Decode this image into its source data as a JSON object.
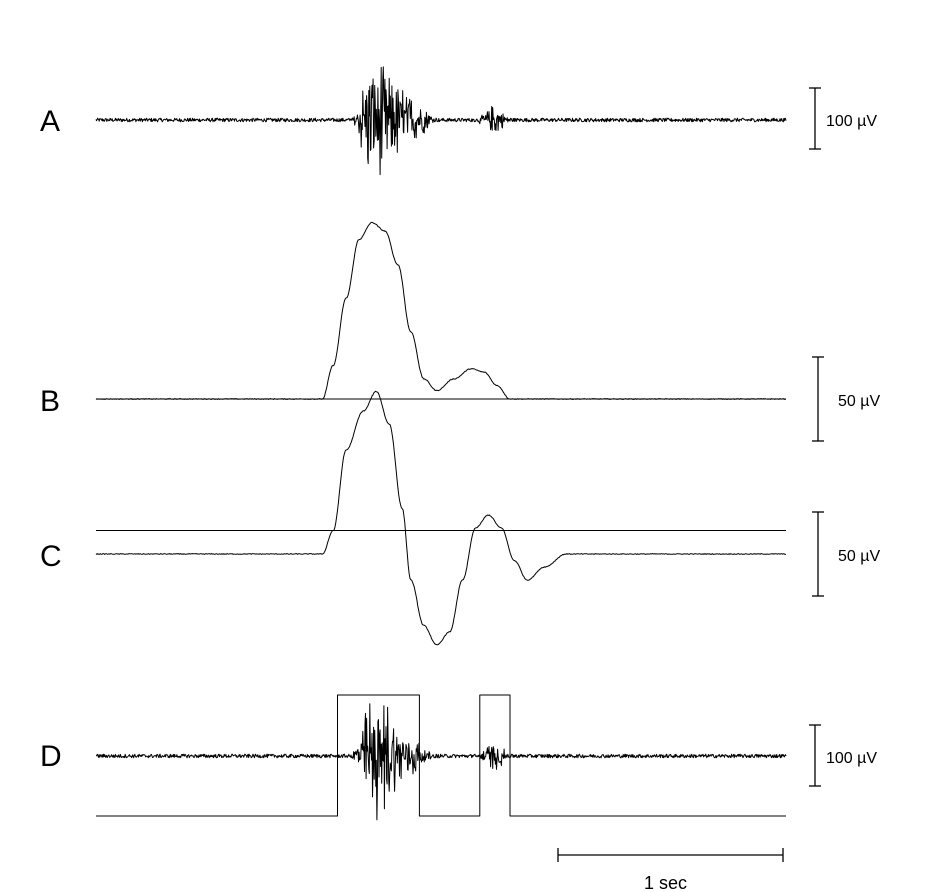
{
  "chart_data": {
    "type": "line",
    "xlabel": "",
    "ylabel": "",
    "time_scale_bar": {
      "label": "1 sec",
      "value_s": 1.0
    },
    "panels": [
      {
        "id": "A",
        "label": "A",
        "description_kind": "raw EMG",
        "scale_bar": {
          "label": "100 µV",
          "value_uv": 100
        },
        "noise_uv": 3,
        "bursts": [
          {
            "start_s": 1.18,
            "end_s": 1.6,
            "peak_s": 1.28,
            "amp_uv": 130
          },
          {
            "start_s": 1.75,
            "end_s": 1.95,
            "peak_s": 1.85,
            "amp_uv": 30
          }
        ]
      },
      {
        "id": "B",
        "label": "B",
        "description_kind": "rectified integrated EMG",
        "scale_bar": {
          "label": "50 µV",
          "value_uv": 50
        },
        "envelope_points": [
          [
            0.0,
            0
          ],
          [
            1.05,
            0
          ],
          [
            1.1,
            20
          ],
          [
            1.16,
            60
          ],
          [
            1.22,
            95
          ],
          [
            1.28,
            105
          ],
          [
            1.34,
            100
          ],
          [
            1.4,
            80
          ],
          [
            1.46,
            40
          ],
          [
            1.52,
            12
          ],
          [
            1.58,
            5
          ],
          [
            1.66,
            12
          ],
          [
            1.74,
            18
          ],
          [
            1.8,
            16
          ],
          [
            1.86,
            8
          ],
          [
            1.92,
            0
          ],
          [
            3.2,
            0
          ]
        ],
        "baseline_line": true
      },
      {
        "id": "C",
        "label": "C",
        "description_kind": "filtered EMG (biphasic)",
        "scale_bar": {
          "label": "50 µV",
          "value_uv": 50
        },
        "offset_line_uv": 14,
        "waveform_points": [
          [
            0.0,
            0
          ],
          [
            1.05,
            0
          ],
          [
            1.1,
            18
          ],
          [
            1.16,
            80
          ],
          [
            1.24,
            110
          ],
          [
            1.3,
            125
          ],
          [
            1.36,
            100
          ],
          [
            1.42,
            35
          ],
          [
            1.46,
            -20
          ],
          [
            1.52,
            -55
          ],
          [
            1.58,
            -70
          ],
          [
            1.64,
            -60
          ],
          [
            1.7,
            -20
          ],
          [
            1.76,
            20
          ],
          [
            1.82,
            30
          ],
          [
            1.88,
            20
          ],
          [
            1.94,
            -5
          ],
          [
            2.0,
            -20
          ],
          [
            2.08,
            -10
          ],
          [
            2.18,
            0
          ],
          [
            3.2,
            0
          ]
        ]
      },
      {
        "id": "D",
        "label": "D",
        "description_kind": "raw EMG with detection gate",
        "scale_bar": {
          "label": "100 µV",
          "value_uv": 100
        },
        "noise_uv": 3,
        "bursts": [
          {
            "start_s": 1.18,
            "end_s": 1.58,
            "peak_s": 1.28,
            "amp_uv": 130
          },
          {
            "start_s": 1.74,
            "end_s": 1.94,
            "peak_s": 1.85,
            "amp_uv": 30
          }
        ],
        "gate_windows_s": [
          [
            1.12,
            1.5
          ],
          [
            1.78,
            1.92
          ]
        ]
      }
    ],
    "time_range_s": [
      0,
      3.2
    ]
  }
}
